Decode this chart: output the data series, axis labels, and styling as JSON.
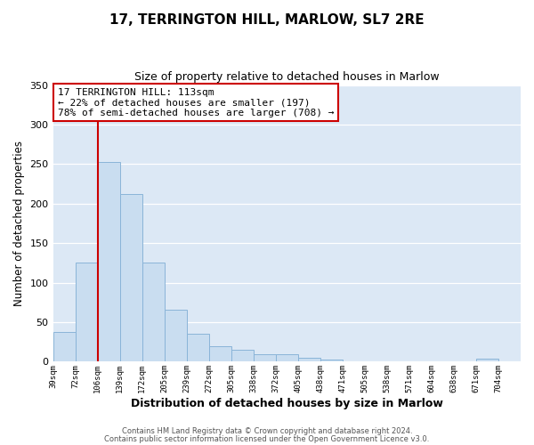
{
  "title": "17, TERRINGTON HILL, MARLOW, SL7 2RE",
  "subtitle": "Size of property relative to detached houses in Marlow",
  "xlabel": "Distribution of detached houses by size in Marlow",
  "ylabel": "Number of detached properties",
  "bin_labels": [
    "39sqm",
    "72sqm",
    "106sqm",
    "139sqm",
    "172sqm",
    "205sqm",
    "239sqm",
    "272sqm",
    "305sqm",
    "338sqm",
    "372sqm",
    "405sqm",
    "438sqm",
    "471sqm",
    "505sqm",
    "538sqm",
    "571sqm",
    "604sqm",
    "638sqm",
    "671sqm",
    "704sqm"
  ],
  "bar_heights": [
    38,
    125,
    253,
    212,
    125,
    66,
    35,
    20,
    15,
    9,
    10,
    5,
    3,
    0,
    0,
    0,
    0,
    0,
    0,
    4,
    0
  ],
  "bar_color": "#c9ddf0",
  "bar_edge_color": "#8ab4d8",
  "vline_x_index": 2,
  "vline_color": "#cc0000",
  "ylim": [
    0,
    350
  ],
  "yticks": [
    0,
    50,
    100,
    150,
    200,
    250,
    300,
    350
  ],
  "annotation_title": "17 TERRINGTON HILL: 113sqm",
  "annotation_line1": "← 22% of detached houses are smaller (197)",
  "annotation_line2": "78% of semi-detached houses are larger (708) →",
  "annotation_box_facecolor": "#ffffff",
  "annotation_box_edgecolor": "#cc0000",
  "fig_bg_color": "#ffffff",
  "plot_bg_color": "#dce8f5",
  "grid_color": "#ffffff",
  "footer1": "Contains HM Land Registry data © Crown copyright and database right 2024.",
  "footer2": "Contains public sector information licensed under the Open Government Licence v3.0."
}
